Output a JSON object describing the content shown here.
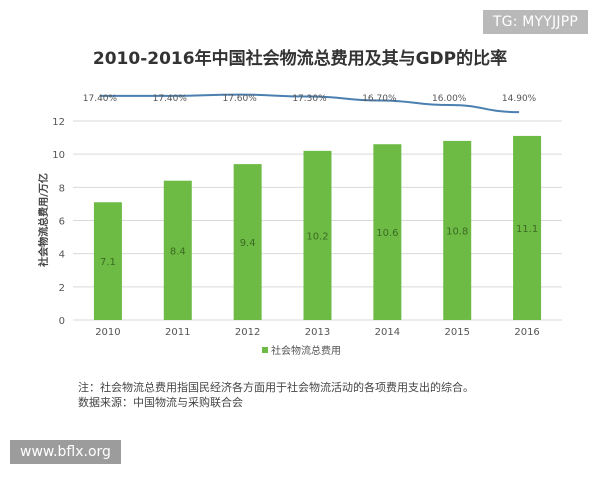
{
  "badges": {
    "tg": "TG: MYYJJPP",
    "site": "www.bflx.org"
  },
  "footnote": {
    "note": "注：社会物流总费用指国民经济各方面用于社会物流活动的各项费用支出的综合。",
    "source": "数据来源：中国物流与采购联合会"
  },
  "colors": {
    "bar": "#6dbb45",
    "line": "#4a7fb0",
    "grid": "#d9d9d9",
    "text": "#555555"
  },
  "chart_data": {
    "type": "bar",
    "title": "2010-2016年中国社会物流总费用及其与GDP的比率",
    "categories": [
      "2010",
      "2011",
      "2012",
      "2013",
      "2014",
      "2015",
      "2016"
    ],
    "ylabel": "社会物流总费用/万亿",
    "xlabel": "",
    "ylim": [
      0,
      12
    ],
    "yticks": [
      "0",
      "2",
      "4",
      "6",
      "8",
      "10",
      "12"
    ],
    "grid": true,
    "series": [
      {
        "name": "社会物流总费用",
        "type": "bar",
        "values": [
          7.1,
          8.4,
          9.4,
          10.2,
          10.6,
          10.8,
          11.1
        ],
        "labels": [
          "7.1",
          "8.4",
          "9.4",
          "10.2",
          "10.6",
          "10.8",
          "11.1"
        ]
      },
      {
        "name": "与GDP的比率",
        "type": "line",
        "values": [
          17.4,
          17.4,
          17.6,
          17.3,
          16.7,
          16.0,
          14.9
        ],
        "labels": [
          "17.40%",
          "17.40%",
          "17.60%",
          "17.30%",
          "16.70%",
          "16.00%",
          "14.90%"
        ]
      }
    ],
    "legend": {
      "position": "bottom",
      "entries": [
        "社会物流总费用"
      ]
    }
  }
}
